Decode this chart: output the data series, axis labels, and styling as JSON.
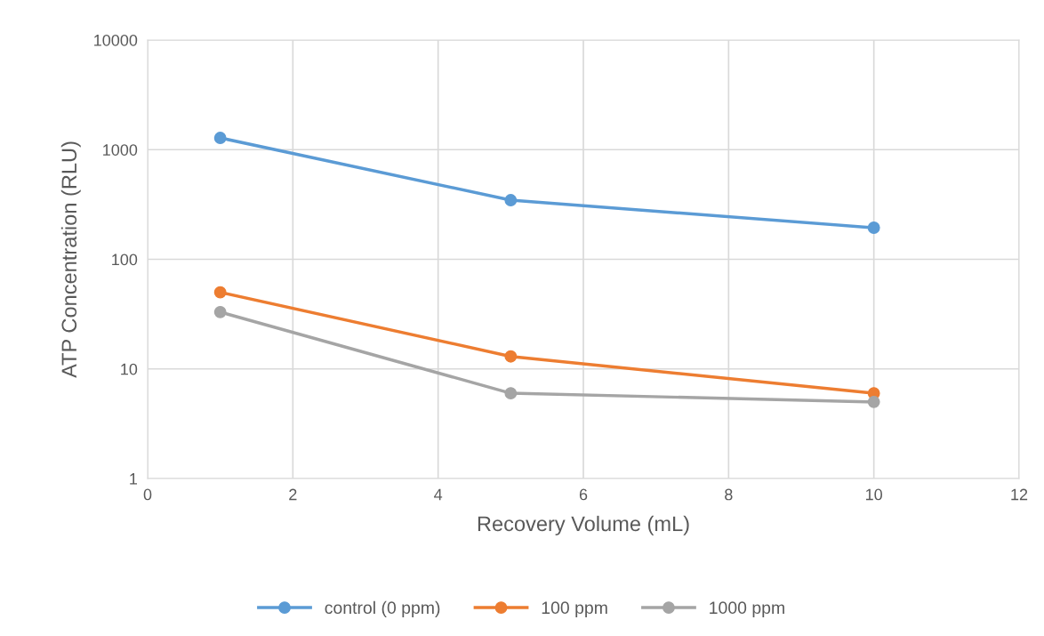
{
  "chart_data": {
    "type": "line",
    "xlabel": "Recovery Volume (mL)",
    "ylabel": "ATP Concentration (RLU)",
    "x": [
      1,
      5,
      10
    ],
    "series": [
      {
        "name": "control (0 ppm)",
        "color": "#5b9bd5",
        "values": [
          1280,
          346,
          194
        ]
      },
      {
        "name": "100 ppm",
        "color": "#ed7d31",
        "values": [
          50,
          13,
          6
        ]
      },
      {
        "name": "1000 ppm",
        "color": "#a5a5a5",
        "values": [
          33,
          6,
          5
        ]
      }
    ],
    "xlim": [
      0,
      12
    ],
    "xticks": [
      0,
      2,
      4,
      6,
      8,
      10,
      12
    ],
    "ylim": [
      1,
      10000
    ],
    "yticks": [
      1,
      10,
      100,
      1000,
      10000
    ],
    "log": "y",
    "grid": true,
    "legend": "bottom",
    "marker": "circle",
    "line_style": "solid"
  }
}
